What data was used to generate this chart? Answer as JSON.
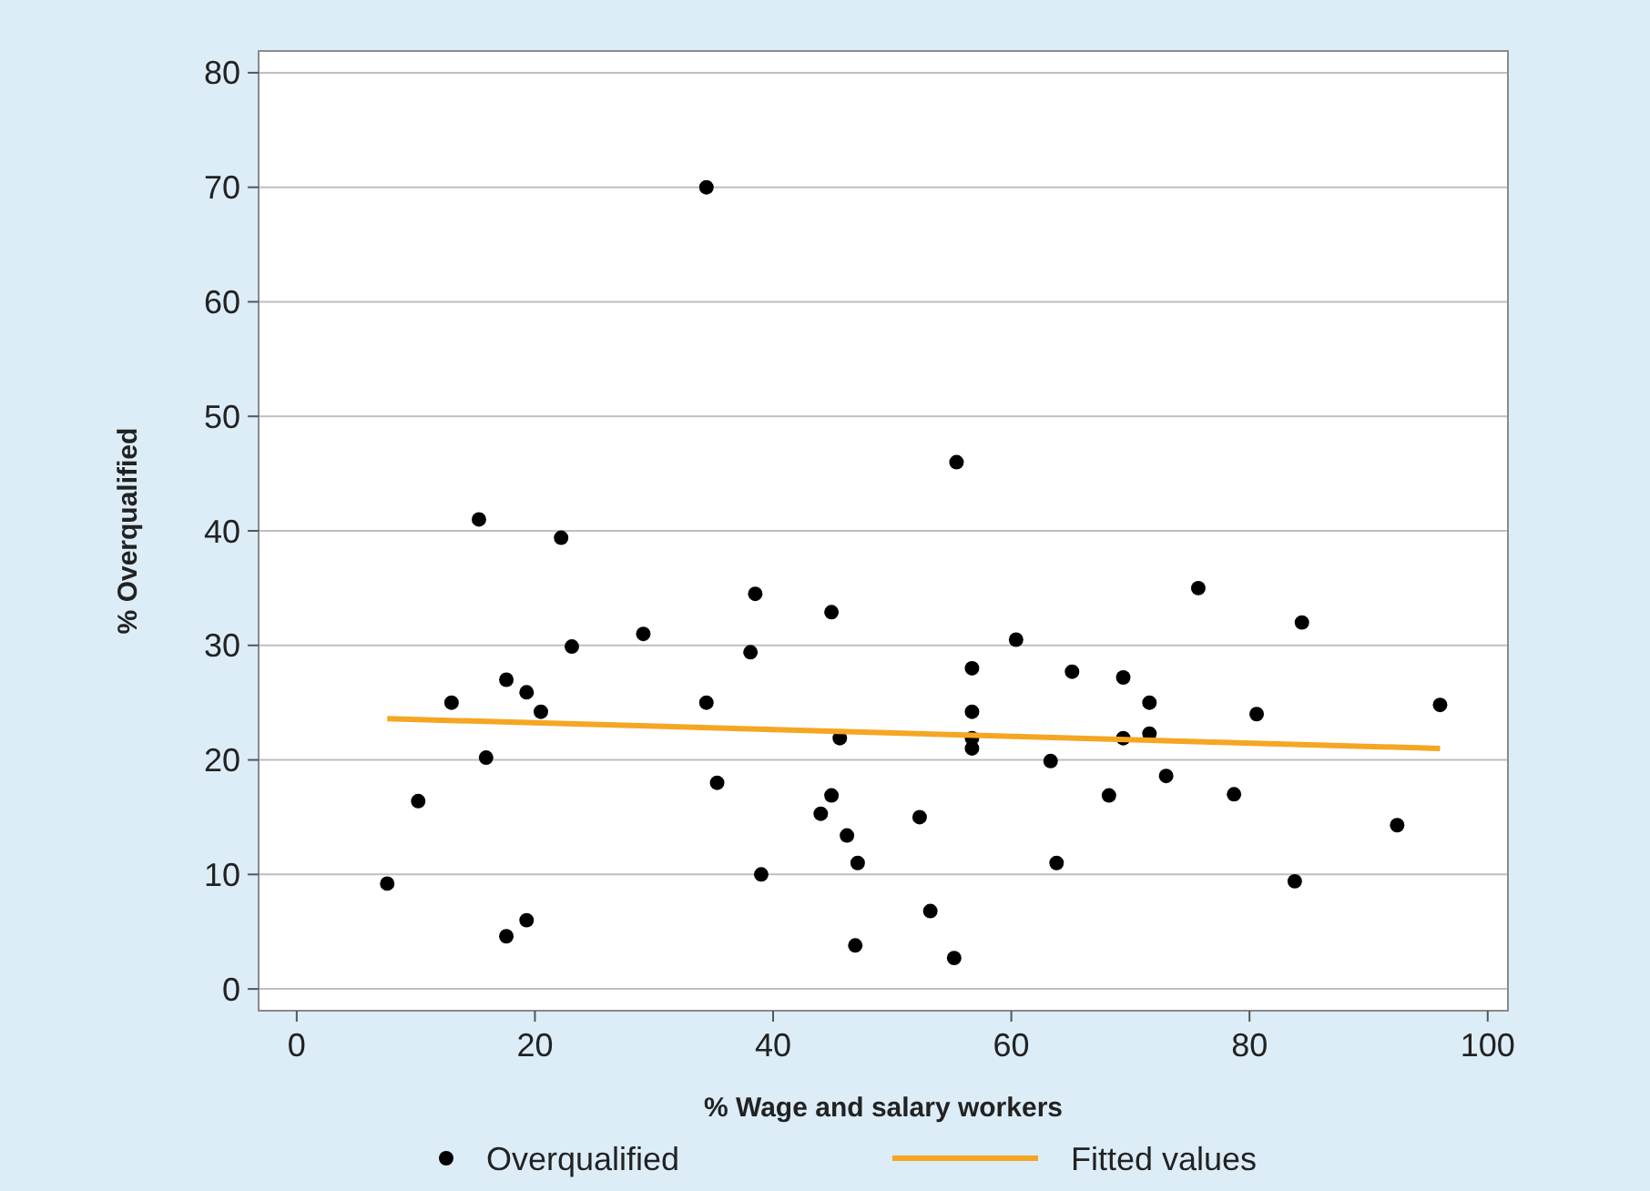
{
  "chart_data": {
    "type": "scatter",
    "xlabel": "% Wage and salary workers",
    "ylabel": "% Overqualified",
    "xlim": [
      -3.2,
      101.7
    ],
    "ylim": [
      -1.9,
      81.9
    ],
    "xticks": [
      0,
      20,
      40,
      60,
      80,
      100
    ],
    "yticks": [
      0,
      10,
      20,
      30,
      40,
      50,
      60,
      70,
      80
    ],
    "grid": "y",
    "legend": "bottom",
    "marker": "circle",
    "series": [
      {
        "name": "Overqualified",
        "color": "#000000",
        "x": [
          7.6,
          10.2,
          13.0,
          15.3,
          15.9,
          17.6,
          17.6,
          19.3,
          19.3,
          20.5,
          22.2,
          23.1,
          29.1,
          34.4,
          34.4,
          35.3,
          38.1,
          38.5,
          39.0,
          44.0,
          44.9,
          44.9,
          45.6,
          46.2,
          47.1,
          46.9,
          52.3,
          53.2,
          55.2,
          55.4,
          56.7,
          56.7,
          56.7,
          56.7,
          60.4,
          63.3,
          63.8,
          65.1,
          68.2,
          69.4,
          69.4,
          71.6,
          71.6,
          73.0,
          75.7,
          78.7,
          80.6,
          83.8,
          84.4,
          92.4,
          96.0
        ],
        "values": [
          9.2,
          16.4,
          25.0,
          41.0,
          20.2,
          27.0,
          4.6,
          25.9,
          6.0,
          24.2,
          39.4,
          29.9,
          31.0,
          70.0,
          25.0,
          18.0,
          29.4,
          34.5,
          10.0,
          15.3,
          32.9,
          16.9,
          21.9,
          13.4,
          11.0,
          3.8,
          15.0,
          6.8,
          2.7,
          46.0,
          28.0,
          24.2,
          21.9,
          21.0,
          30.5,
          19.9,
          11.0,
          27.7,
          16.9,
          27.2,
          21.9,
          25.0,
          22.3,
          18.6,
          35.0,
          17.0,
          24.0,
          9.4,
          32.0,
          14.3,
          24.8
        ]
      },
      {
        "name": "Fitted values",
        "type": "line",
        "color": "#f5a623",
        "marker": "none",
        "x": [
          7.6,
          96.0
        ],
        "values": [
          23.6,
          21.0
        ]
      }
    ]
  }
}
